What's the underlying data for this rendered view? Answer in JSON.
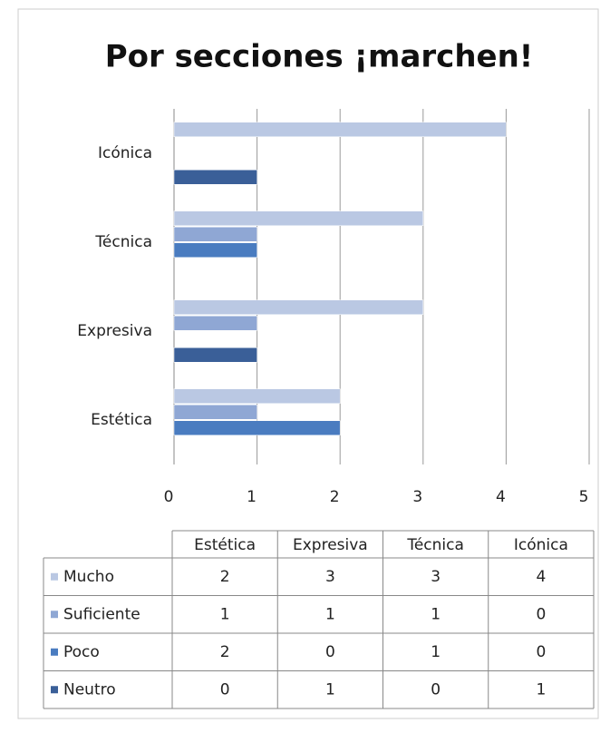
{
  "chart_data": {
    "type": "bar",
    "orientation": "horizontal",
    "title": "Por secciones ¡marchen!",
    "categories": [
      "Estética",
      "Expresiva",
      "Técnica",
      "Icónica"
    ],
    "series": [
      {
        "name": "Mucho",
        "color": "#bac8e3",
        "values": [
          2,
          3,
          3,
          4
        ]
      },
      {
        "name": "Suficiente",
        "color": "#8fa7d4",
        "values": [
          1,
          1,
          1,
          0
        ]
      },
      {
        "name": "Poco",
        "color": "#4a7cc0",
        "values": [
          2,
          0,
          1,
          0
        ]
      },
      {
        "name": "Neutro",
        "color": "#3a5f98",
        "values": [
          0,
          1,
          0,
          1
        ]
      }
    ],
    "xlim": [
      0,
      5
    ],
    "xticks": [
      0,
      1,
      2,
      3,
      4,
      5
    ],
    "grid": true,
    "data_table": true
  }
}
